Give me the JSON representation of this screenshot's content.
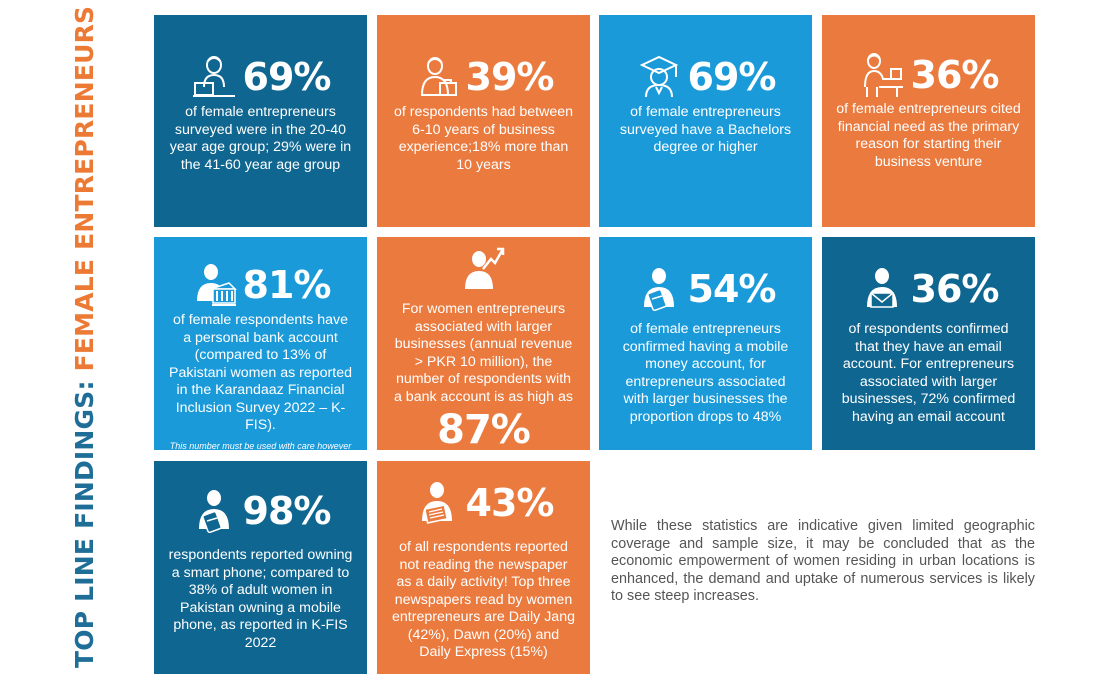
{
  "side_title": {
    "part1": "TOP LINE FINDINGS: ",
    "part2": "FEMALE ENTREPRENEURS"
  },
  "colors": {
    "dark": "#0f6690",
    "orange": "#ea7a3e",
    "light": "#1a9ad9",
    "title_blue": "#1f6e97",
    "title_orange": "#ec7a34"
  },
  "tiles": [
    {
      "icon": "woman-laptop-icon",
      "pct": "69%",
      "text": "of female entrepreneurs surveyed were in the 20-40 year age group; 29% were in the 41-60 year age group"
    },
    {
      "icon": "woman-briefcase-icon",
      "pct": "39%",
      "text": "of respondents had between 6-10 years of business experience;18% more than 10 years"
    },
    {
      "icon": "graduate-icon",
      "pct": "69%",
      "text": "of female entrepreneurs surveyed have a Bachelors degree or higher"
    },
    {
      "icon": "woman-desk-icon",
      "pct": "36%",
      "text": "of female entrepreneurs cited financial need as the primary reason for starting their business venture"
    },
    {
      "icon": "woman-bank-icon",
      "pct": "81%",
      "text": "of female respondents have a personal bank account (compared to 13% of Pakistani women as reported in the Karandaaz Financial Inclusion Survey 2022 – K-FIS).",
      "note": "This number must be used with care however as it is based on a limited sample"
    },
    {
      "icon": "woman-growth-icon",
      "text": "For women entrepreneurs associated with larger businesses (annual revenue > PKR 10 million), the number of respondents with a bank account is as high as",
      "pct": "87%"
    },
    {
      "icon": "woman-mobile-money-icon",
      "pct": "54%",
      "text": "of female entrepreneurs confirmed having a mobile money account, for entrepreneurs associated with larger businesses the proportion drops to 48%"
    },
    {
      "icon": "woman-email-icon",
      "pct": "36%",
      "text": "of respondents confirmed that they have an email account. For entrepreneurs associated with larger businesses, 72% confirmed having an email account"
    },
    {
      "icon": "woman-smartphone-icon",
      "pct": "98%",
      "text": "respondents reported owning a smart phone; compared to 38% of adult women in Pakistan owning a mobile phone, as reported in K-FIS 2022"
    },
    {
      "icon": "woman-newspaper-icon",
      "pct": "43%",
      "text": "of all respondents reported not reading the newspaper as a daily activity! Top three newspapers read by women entrepreneurs are Daily Jang (42%), Dawn (20%) and Daily Express (15%)"
    }
  ],
  "summary": "While these statistics are indicative given limited geographic coverage and sample size, it may be concluded that as the economic empowerment of women residing in urban locations is enhanced, the demand and uptake of numerous services is likely to see steep increases."
}
